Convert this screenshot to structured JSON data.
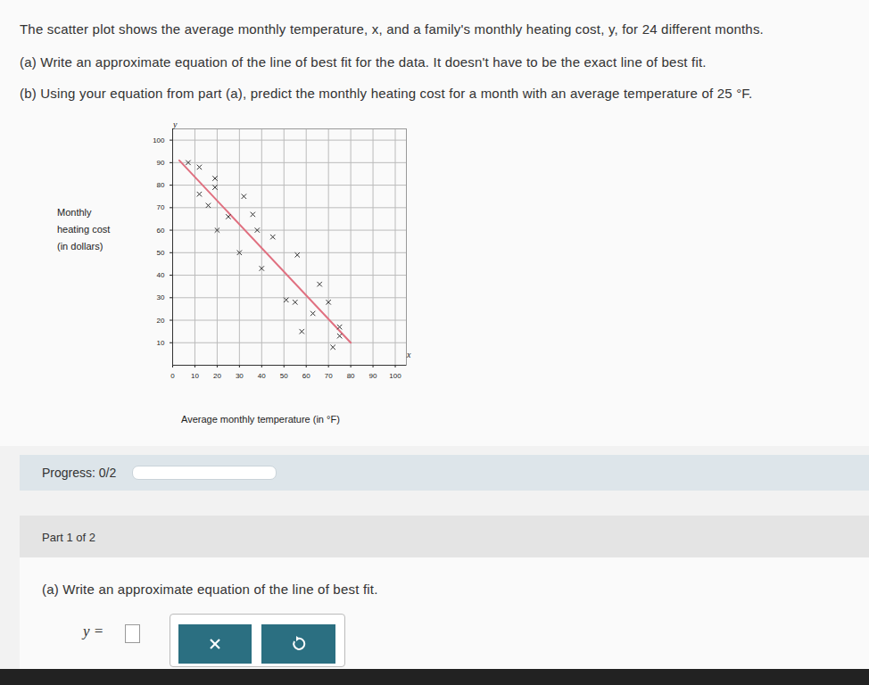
{
  "page": {
    "question_lines": [
      "The scatter plot shows the average monthly temperature, x, and a family's monthly heating cost, y, for 24 different months.",
      "(a) Write an approximate equation of the line of best fit for the data. It doesn't have to be the exact line of best fit.",
      "(b) Using your equation from part (a), predict the monthly heating cost for a month with an average temperature of 25 °F."
    ],
    "progress": "Progress: 0/2",
    "part": "Part 1 of 2",
    "prompt": "(a) Write an approximate equation of the line of best fit.",
    "answer_label": "y ="
  },
  "chart_data": {
    "type": "scatter",
    "ylabel_lines": [
      "Monthly",
      "heating cost",
      "(in dollars)"
    ],
    "xlabel": "Average monthly temperature (in °F)",
    "axis_names": {
      "x": "x",
      "y": "y"
    },
    "x": [
      7,
      12,
      19,
      19,
      12,
      16,
      32,
      25,
      36,
      20,
      38,
      45,
      30,
      56,
      40,
      66,
      51,
      55,
      70,
      63,
      58,
      75,
      75,
      72
    ],
    "values": [
      90,
      88,
      83,
      79,
      76,
      71,
      75,
      66,
      67,
      60,
      60,
      57,
      50,
      49,
      43,
      36,
      29,
      28,
      28,
      23,
      15,
      17,
      13,
      8
    ],
    "marker": "x",
    "color": "#333333",
    "trend_line": {
      "x": [
        3,
        80
      ],
      "y": [
        91,
        10
      ],
      "color": "#e07080"
    },
    "xlim": [
      0,
      105
    ],
    "ylim": [
      0,
      105
    ],
    "xticks": [
      0,
      10,
      20,
      30,
      40,
      50,
      60,
      70,
      80,
      90,
      100
    ],
    "yticks": [
      10,
      20,
      30,
      40,
      50,
      60,
      70,
      80,
      90,
      100
    ],
    "grid": true
  }
}
